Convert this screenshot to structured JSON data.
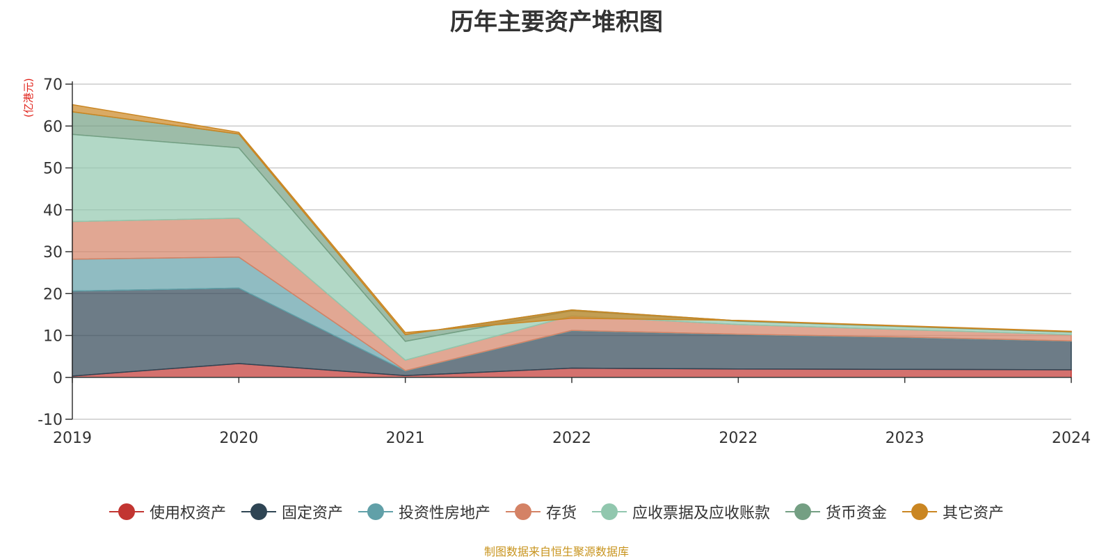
{
  "chart_data": {
    "type": "area",
    "title": "历年主要资产堆积图",
    "ylabel": "(亿港元)",
    "categories": [
      "2019",
      "2020",
      "2021",
      "2022",
      "2022",
      "2023",
      "2024"
    ],
    "ylim": [
      -10,
      70
    ],
    "yticks": [
      -10,
      0,
      10,
      20,
      30,
      40,
      50,
      60,
      70
    ],
    "grid": true,
    "legend_position": "bottom",
    "series": [
      {
        "name": "使用权资产",
        "color": "#c23531",
        "values": [
          0.3,
          3.3,
          0.4,
          2.2,
          2.0,
          1.9,
          1.8
        ]
      },
      {
        "name": "固定资产",
        "color": "#2f4554",
        "values": [
          20.3,
          18.0,
          1.1,
          8.9,
          8.2,
          7.6,
          6.8
        ]
      },
      {
        "name": "投资性房地产",
        "color": "#61a0a8",
        "values": [
          7.6,
          7.4,
          0.1,
          0.1,
          0.1,
          0.1,
          0.1
        ]
      },
      {
        "name": "存货",
        "color": "#d48265",
        "values": [
          9.0,
          9.3,
          2.5,
          3.5,
          2.3,
          1.8,
          1.5
        ]
      },
      {
        "name": "应收票据及应收账款",
        "color": "#91c7ae",
        "values": [
          20.8,
          16.8,
          4.5,
          1.2,
          0.8,
          0.7,
          0.6
        ]
      },
      {
        "name": "货币资金",
        "color": "#749f83",
        "values": [
          5.4,
          3.3,
          1.6,
          0.2,
          0.1,
          0.1,
          0.1
        ]
      },
      {
        "name": "其它资产",
        "color": "#ca8622",
        "values": [
          1.7,
          0.4,
          0.5,
          -2.0,
          0.1,
          0.1,
          0.1
        ]
      }
    ]
  },
  "source_note": "制图数据来自恒生聚源数据库"
}
